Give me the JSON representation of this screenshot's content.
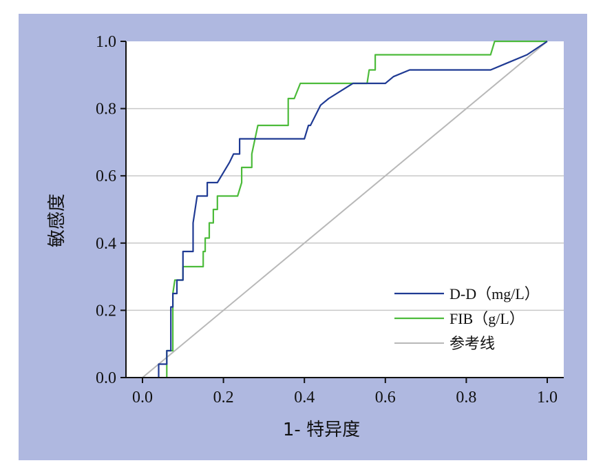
{
  "chart_data": {
    "type": "line",
    "title": "",
    "xlabel": "1- 特异度",
    "ylabel": "敏感度",
    "xlim": [
      0.0,
      1.0
    ],
    "ylim": [
      0.0,
      1.0
    ],
    "xticks": [
      "0.0",
      "0.2",
      "0.4",
      "0.6",
      "0.8",
      "1.0"
    ],
    "yticks": [
      "0.0",
      "0.2",
      "0.4",
      "0.6",
      "0.8",
      "1.0"
    ],
    "grid": "horizontal",
    "legend_position": "bottom-right",
    "series": [
      {
        "name": "D-D（mg/L）",
        "color": "#1f3a93",
        "points": [
          [
            0.04,
            0.0
          ],
          [
            0.04,
            0.04
          ],
          [
            0.06,
            0.04
          ],
          [
            0.06,
            0.08
          ],
          [
            0.07,
            0.08
          ],
          [
            0.07,
            0.21
          ],
          [
            0.075,
            0.21
          ],
          [
            0.075,
            0.25
          ],
          [
            0.085,
            0.25
          ],
          [
            0.085,
            0.29
          ],
          [
            0.1,
            0.29
          ],
          [
            0.1,
            0.375
          ],
          [
            0.125,
            0.375
          ],
          [
            0.125,
            0.46
          ],
          [
            0.135,
            0.54
          ],
          [
            0.16,
            0.54
          ],
          [
            0.16,
            0.58
          ],
          [
            0.185,
            0.58
          ],
          [
            0.2,
            0.61
          ],
          [
            0.215,
            0.64
          ],
          [
            0.225,
            0.665
          ],
          [
            0.24,
            0.665
          ],
          [
            0.24,
            0.71
          ],
          [
            0.4,
            0.71
          ],
          [
            0.41,
            0.75
          ],
          [
            0.415,
            0.75
          ],
          [
            0.44,
            0.81
          ],
          [
            0.46,
            0.83
          ],
          [
            0.5,
            0.86
          ],
          [
            0.52,
            0.875
          ],
          [
            0.6,
            0.875
          ],
          [
            0.62,
            0.895
          ],
          [
            0.66,
            0.915
          ],
          [
            0.86,
            0.915
          ],
          [
            0.9,
            0.935
          ],
          [
            0.95,
            0.96
          ],
          [
            1.0,
            1.0
          ]
        ]
      },
      {
        "name": "FIB（g/L）",
        "color": "#4cbb3a",
        "points": [
          [
            0.06,
            0.0
          ],
          [
            0.06,
            0.08
          ],
          [
            0.075,
            0.08
          ],
          [
            0.075,
            0.25
          ],
          [
            0.08,
            0.29
          ],
          [
            0.1,
            0.29
          ],
          [
            0.1,
            0.33
          ],
          [
            0.15,
            0.33
          ],
          [
            0.15,
            0.375
          ],
          [
            0.155,
            0.375
          ],
          [
            0.155,
            0.415
          ],
          [
            0.165,
            0.415
          ],
          [
            0.165,
            0.46
          ],
          [
            0.175,
            0.46
          ],
          [
            0.175,
            0.5
          ],
          [
            0.185,
            0.5
          ],
          [
            0.185,
            0.54
          ],
          [
            0.235,
            0.54
          ],
          [
            0.245,
            0.58
          ],
          [
            0.245,
            0.625
          ],
          [
            0.27,
            0.625
          ],
          [
            0.27,
            0.665
          ],
          [
            0.285,
            0.75
          ],
          [
            0.36,
            0.75
          ],
          [
            0.36,
            0.83
          ],
          [
            0.375,
            0.83
          ],
          [
            0.39,
            0.875
          ],
          [
            0.555,
            0.875
          ],
          [
            0.56,
            0.915
          ],
          [
            0.575,
            0.915
          ],
          [
            0.575,
            0.96
          ],
          [
            0.86,
            0.96
          ],
          [
            0.87,
            1.0
          ],
          [
            1.0,
            1.0
          ]
        ]
      },
      {
        "name": "参考线",
        "color": "#b8b8b8",
        "points": [
          [
            0.0,
            0.0
          ],
          [
            1.0,
            1.0
          ]
        ]
      }
    ]
  }
}
